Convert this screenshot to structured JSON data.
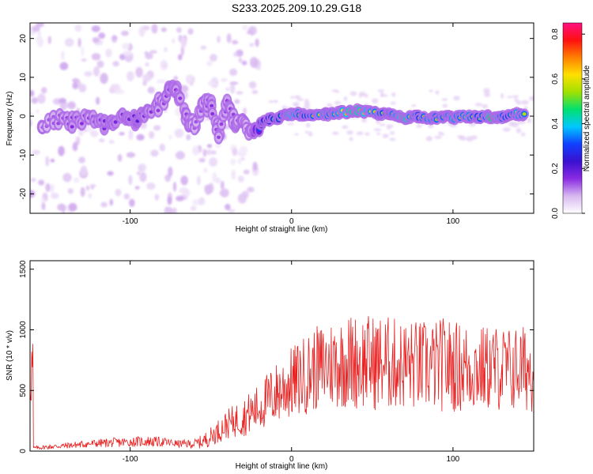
{
  "title": "S233.2025.209.10.29.G18",
  "chart_data": [
    {
      "type": "heatmap",
      "xlabel": "Height of straight line (km)",
      "ylabel": "Frequency (Hz)",
      "xlim": [
        -162,
        150
      ],
      "ylim": [
        -25,
        24
      ],
      "xticks": [
        -100,
        0,
        100
      ],
      "yticks": [
        -20,
        -10,
        0,
        10,
        20
      ],
      "xtick_labels": [
        "-100",
        "0",
        "100"
      ],
      "ytick_labels": [
        "-20",
        "-10",
        "0",
        "10",
        "20"
      ],
      "colorbar": {
        "label": "Normalized spectral amplitude",
        "range": [
          0.0,
          0.85
        ],
        "ticks": [
          "0.0",
          "0.2",
          "0.4",
          "0.6",
          "0.8"
        ],
        "colors": [
          "#ffffff",
          "#d8b8f0",
          "#8a2be2",
          "#3a10d0",
          "#1040ff",
          "#00c8ff",
          "#00e070",
          "#a0e000",
          "#ffe000",
          "#ff8000",
          "#ff1010",
          "#ff1080"
        ]
      },
      "ridge": [
        {
          "x": -155,
          "y": -2.5,
          "a": 0.12
        },
        {
          "x": -145,
          "y": -1.0,
          "a": 0.14
        },
        {
          "x": -135,
          "y": -1.5,
          "a": 0.16
        },
        {
          "x": -125,
          "y": -1.0,
          "a": 0.15
        },
        {
          "x": -115,
          "y": -2.0,
          "a": 0.18
        },
        {
          "x": -105,
          "y": -0.5,
          "a": 0.17
        },
        {
          "x": -95,
          "y": -1.0,
          "a": 0.2
        },
        {
          "x": -88,
          "y": 0.5,
          "a": 0.16
        },
        {
          "x": -80,
          "y": 4.0,
          "a": 0.14
        },
        {
          "x": -75,
          "y": 8.0,
          "a": 0.17
        },
        {
          "x": -70,
          "y": 6.0,
          "a": 0.15
        },
        {
          "x": -65,
          "y": -1.0,
          "a": 0.15
        },
        {
          "x": -60,
          "y": -3.0,
          "a": 0.13
        },
        {
          "x": -55,
          "y": 2.0,
          "a": 0.14
        },
        {
          "x": -50,
          "y": 4.0,
          "a": 0.16
        },
        {
          "x": -45,
          "y": -6.0,
          "a": 0.14
        },
        {
          "x": -40,
          "y": 4.0,
          "a": 0.15
        },
        {
          "x": -35,
          "y": -3.0,
          "a": 0.14
        },
        {
          "x": -30,
          "y": 0.0,
          "a": 0.13
        },
        {
          "x": -25,
          "y": -4.0,
          "a": 0.12
        },
        {
          "x": -20,
          "y": -2.0,
          "a": 0.35
        },
        {
          "x": -15,
          "y": -1.0,
          "a": 0.4
        },
        {
          "x": -10,
          "y": -0.5,
          "a": 0.45
        },
        {
          "x": -5,
          "y": 0.0,
          "a": 0.5
        },
        {
          "x": 0,
          "y": 0.5,
          "a": 0.65
        },
        {
          "x": 5,
          "y": 0.5,
          "a": 0.55
        },
        {
          "x": 10,
          "y": 0.0,
          "a": 0.5
        },
        {
          "x": 15,
          "y": 0.0,
          "a": 0.55
        },
        {
          "x": 20,
          "y": 0.5,
          "a": 0.6
        },
        {
          "x": 25,
          "y": 0.5,
          "a": 0.55
        },
        {
          "x": 30,
          "y": 1.0,
          "a": 0.6
        },
        {
          "x": 35,
          "y": 1.0,
          "a": 0.65
        },
        {
          "x": 40,
          "y": 1.5,
          "a": 0.75
        },
        {
          "x": 45,
          "y": 1.0,
          "a": 0.65
        },
        {
          "x": 50,
          "y": 1.0,
          "a": 0.6
        },
        {
          "x": 55,
          "y": 0.5,
          "a": 0.55
        },
        {
          "x": 60,
          "y": 0.5,
          "a": 0.5
        },
        {
          "x": 65,
          "y": 0.0,
          "a": 0.6
        },
        {
          "x": 70,
          "y": -0.5,
          "a": 0.75
        },
        {
          "x": 75,
          "y": 0.0,
          "a": 0.55
        },
        {
          "x": 80,
          "y": 0.0,
          "a": 0.5
        },
        {
          "x": 85,
          "y": -0.5,
          "a": 0.6
        },
        {
          "x": 90,
          "y": -0.5,
          "a": 0.55
        },
        {
          "x": 95,
          "y": 0.0,
          "a": 0.55
        },
        {
          "x": 100,
          "y": -0.5,
          "a": 0.6
        },
        {
          "x": 105,
          "y": 0.0,
          "a": 0.55
        },
        {
          "x": 110,
          "y": 0.0,
          "a": 0.6
        },
        {
          "x": 115,
          "y": -0.5,
          "a": 0.5
        },
        {
          "x": 120,
          "y": 0.0,
          "a": 0.55
        },
        {
          "x": 125,
          "y": -0.5,
          "a": 0.8
        },
        {
          "x": 130,
          "y": -0.5,
          "a": 0.55
        },
        {
          "x": 135,
          "y": 0.0,
          "a": 0.5
        },
        {
          "x": 140,
          "y": 0.5,
          "a": 0.6
        },
        {
          "x": 145,
          "y": 0.0,
          "a": 0.55
        }
      ]
    },
    {
      "type": "line",
      "xlabel": "Height of straight line (km)",
      "ylabel": "SNR (10 * v/v)",
      "xlim": [
        -162,
        150
      ],
      "ylim": [
        0,
        1570
      ],
      "xticks": [
        -100,
        0,
        100
      ],
      "yticks": [
        0,
        500,
        1000,
        1500
      ],
      "xtick_labels": [
        "-100",
        "0",
        "100"
      ],
      "ytick_labels": [
        "0",
        "500",
        "1000",
        "1500"
      ],
      "color": "#e82020",
      "series": [
        {
          "x": [
            -160,
            -150,
            -140,
            -130,
            -120,
            -110,
            -100,
            -90,
            -80,
            -70,
            -60,
            -55,
            -50,
            -45,
            -40,
            -35,
            -30,
            -25,
            -20,
            -15,
            -10,
            -5,
            0,
            5,
            10,
            15,
            20,
            25,
            30,
            35,
            40,
            45,
            50,
            55,
            60,
            65,
            70,
            75,
            80,
            85,
            90,
            95,
            100,
            105,
            110,
            115,
            120,
            125,
            130,
            135,
            140,
            145,
            150
          ],
          "y": [
            25,
            35,
            45,
            55,
            65,
            70,
            75,
            80,
            75,
            60,
            60,
            80,
            120,
            170,
            220,
            250,
            280,
            320,
            360,
            420,
            470,
            520,
            560,
            600,
            640,
            680,
            700,
            720,
            730,
            740,
            740,
            740,
            730,
            730,
            720,
            720,
            710,
            710,
            700,
            700,
            700,
            720,
            700,
            690,
            690,
            680,
            680,
            690,
            680,
            670,
            680,
            680,
            680
          ],
          "amplitude": [
            15,
            20,
            25,
            30,
            35,
            40,
            40,
            45,
            40,
            30,
            40,
            60,
            80,
            100,
            120,
            140,
            160,
            180,
            200,
            230,
            260,
            280,
            300,
            320,
            340,
            350,
            360,
            380,
            380,
            400,
            400,
            400,
            400,
            400,
            400,
            380,
            380,
            380,
            380,
            380,
            380,
            400,
            380,
            380,
            380,
            360,
            360,
            360,
            360,
            360,
            360,
            360,
            360
          ]
        }
      ]
    }
  ]
}
